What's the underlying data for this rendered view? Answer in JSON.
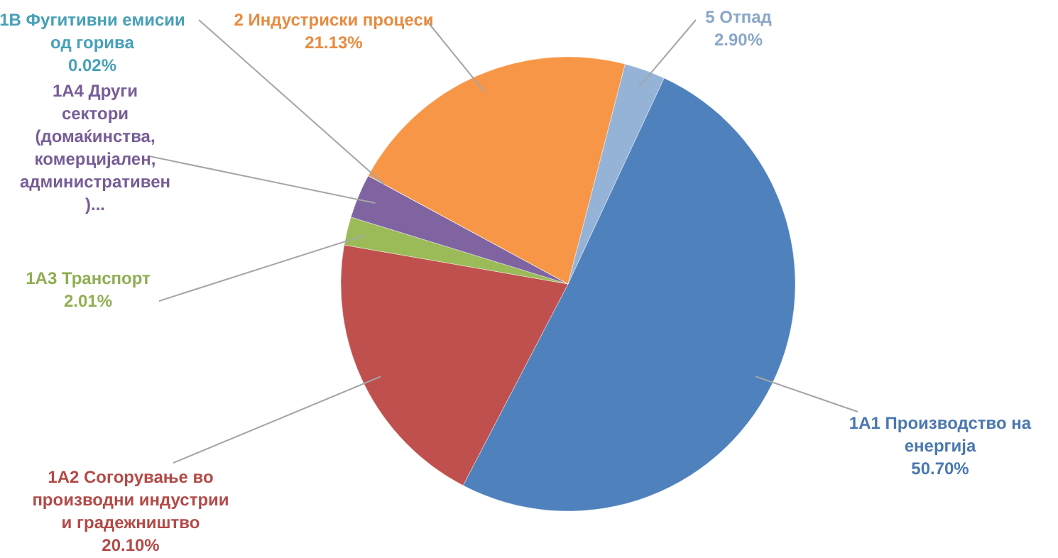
{
  "chart_data": {
    "type": "pie",
    "categories": [
      "1A1 Производство на енергија",
      "1A2 Согорување во производни индустрии и градежништво",
      "1A3 Транспорт",
      "1A4 Други сектори (домаќинства, комерцијален, административен )...",
      "1B Фугитивни емисии од горива",
      "2 Индустриски процеси",
      "5 Отпад"
    ],
    "values": [
      50.7,
      20.1,
      2.01,
      3.14,
      0.02,
      21.13,
      2.9
    ],
    "value_labels": [
      "50.70%",
      "20.10%",
      "2.01%",
      null,
      "0.02%",
      "21.13%",
      "2.90%"
    ],
    "colors": [
      "#4f81bd",
      "#c0504d",
      "#9bbb59",
      "#8064a2",
      "#4bacc6",
      "#f79646",
      "#95b3d7"
    ]
  }
}
